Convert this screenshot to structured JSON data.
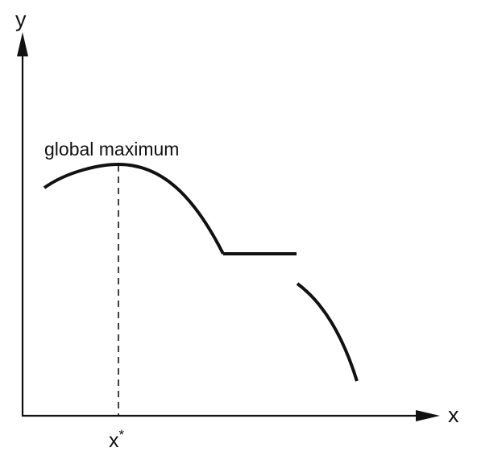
{
  "labels": {
    "y_axis": "y",
    "x_axis": "x",
    "maximum": "global maximum",
    "x_star": "x*"
  },
  "colors": {
    "stroke": "#111111",
    "background": "#ffffff"
  }
}
